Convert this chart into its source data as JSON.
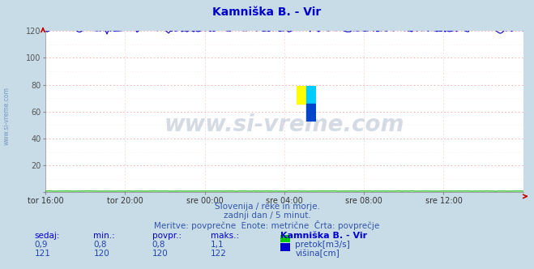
{
  "title": "Kamniška B. - Vir",
  "title_color": "#0000cc",
  "bg_color": "#c8dce8",
  "plot_bg_color": "#ffffff",
  "grid_color_major_h": "#ff9999",
  "grid_color_minor_h": "#ffcccc",
  "grid_color_v": "#ffcccc",
  "x_labels": [
    "tor 16:00",
    "tor 20:00",
    "sre 00:00",
    "sre 04:00",
    "sre 08:00",
    "sre 12:00"
  ],
  "x_ticks_norm": [
    0.0,
    0.1667,
    0.3333,
    0.5,
    0.6667,
    0.8333
  ],
  "ylim": [
    0,
    120
  ],
  "yticks": [
    0,
    20,
    40,
    60,
    80,
    100,
    120
  ],
  "flow_color": "#00aa00",
  "height_color": "#0000cc",
  "watermark": "www.si-vreme.com",
  "watermark_color": "#1a3a6a",
  "watermark_alpha": 0.18,
  "watermark_side_color": "#3060a0",
  "subtitle1": "Slovenija / reke in morje.",
  "subtitle2": "zadnji dan / 5 minut.",
  "subtitle3": "Meritve: povprečne  Enote: metrične  Črta: povprečje",
  "subtitle_color": "#3355aa",
  "table_header": [
    "sedaj:",
    "min.:",
    "povpr.:",
    "maks.:",
    "Kamniška B. - Vir"
  ],
  "table_color_header": "#0000cc",
  "table_color_vals": "#2244aa",
  "table_row1": [
    "0,9",
    "0,8",
    "0,8",
    "1,1",
    "pretok[m3/s]"
  ],
  "table_row2": [
    "121",
    "120",
    "120",
    "122",
    "višina[cm]"
  ],
  "legend_pretok_color": "#00cc00",
  "legend_visina_color": "#0000cc",
  "axis_arrow_color": "#cc0000",
  "n_points": 288,
  "logo_yellow": "#ffff00",
  "logo_cyan": "#00ccff",
  "logo_blue": "#0044cc"
}
